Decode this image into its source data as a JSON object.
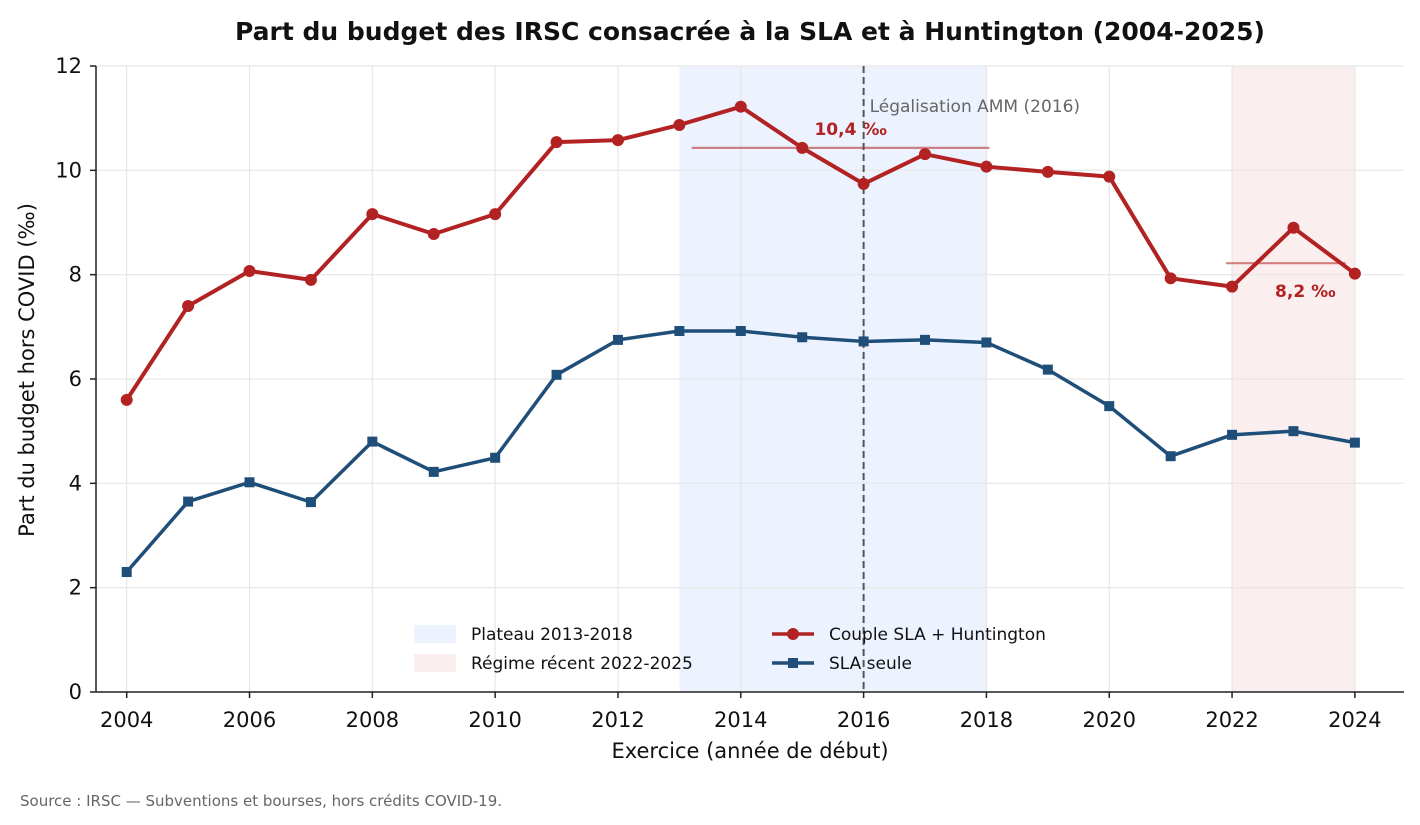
{
  "chart_data": {
    "type": "line",
    "title": "Part du budget des IRSC consacrée à la SLA et à Huntington (2004-2025)",
    "xlabel": "Exercice (année de début)",
    "ylabel": "Part du budget hors COVID (‰)",
    "xlim": [
      2003.5,
      2024.8
    ],
    "ylim": [
      0,
      12
    ],
    "xticks": [
      "2004",
      "2006",
      "2008",
      "2010",
      "2012",
      "2014",
      "2016",
      "2018",
      "2020",
      "2022",
      "2024"
    ],
    "yticks": [
      "0",
      "2",
      "4",
      "6",
      "8",
      "10",
      "12"
    ],
    "grid": true,
    "legend_position": "bottom-center",
    "x": [
      2004,
      2005,
      2006,
      2007,
      2008,
      2009,
      2010,
      2011,
      2012,
      2013,
      2014,
      2015,
      2016,
      2017,
      2018,
      2019,
      2020,
      2021,
      2022,
      2023,
      2024
    ],
    "series": [
      {
        "name": "Couple SLA + Huntington",
        "color": "#b22222",
        "marker": "circle",
        "values": [
          5.6,
          7.4,
          8.07,
          7.9,
          9.16,
          8.78,
          9.16,
          10.54,
          10.58,
          10.87,
          11.22,
          10.43,
          9.74,
          10.31,
          10.07,
          9.97,
          9.88,
          7.93,
          7.77,
          8.9,
          8.02
        ]
      },
      {
        "name": "SLA seule",
        "color": "#1f4e79",
        "marker": "square",
        "values": [
          2.3,
          3.65,
          4.02,
          3.64,
          4.8,
          4.22,
          4.49,
          6.08,
          6.75,
          6.92,
          6.92,
          6.8,
          6.72,
          6.75,
          6.7,
          6.18,
          5.48,
          4.52,
          4.93,
          5.0,
          4.78
        ]
      }
    ],
    "shaded_regions": [
      {
        "label": "Plateau 2013-2018",
        "x_start": 2013,
        "x_end": 2018,
        "color": "#ecf3fe"
      },
      {
        "label": "Régime récent 2022-2025",
        "x_start": 2022,
        "x_end": 2024,
        "color": "#fbeeee"
      }
    ],
    "average_lines": [
      {
        "label": "10,4 ‰",
        "value": 10.43,
        "x_start": 2013.2,
        "x_end": 2018.05,
        "color": "#b22222"
      },
      {
        "label": "8,2 ‰",
        "value": 8.22,
        "x_start": 2021.9,
        "x_end": 2023.85,
        "color": "#b22222"
      }
    ],
    "vertical_line": {
      "x": 2016,
      "label": "Légalisation AMM (2016)",
      "color": "#555555"
    },
    "source": "Source : IRSC — Subventions et bourses, hors crédits COVID-19."
  }
}
